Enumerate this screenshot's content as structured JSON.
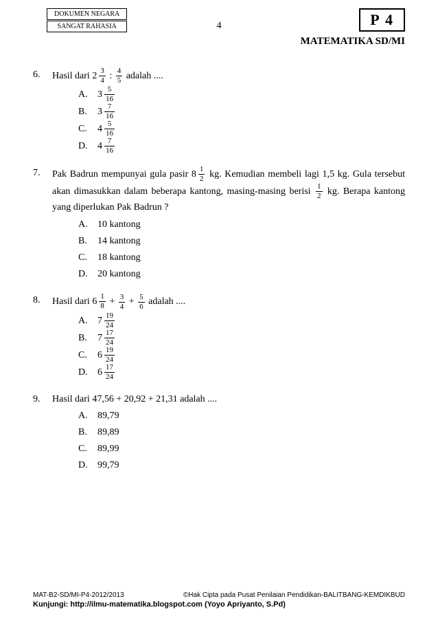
{
  "header": {
    "box1": "DOKUMEN NEGARA",
    "box2": "SANGAT RAHASIA",
    "page_number": "4",
    "code_box": "P 4",
    "subject": "MATEMATIKA SD/MI"
  },
  "questions": [
    {
      "num": "6.",
      "parts": [
        "Hasil dari  ",
        {
          "whole": "2",
          "n": "3",
          "d": "4"
        },
        " : ",
        {
          "n": "4",
          "d": "5"
        },
        "  adalah ...."
      ],
      "options": [
        {
          "label": "A.",
          "parts": [
            {
              "whole": "3",
              "n": "5",
              "d": "16"
            }
          ]
        },
        {
          "label": "B.",
          "parts": [
            {
              "whole": "3",
              "n": "7",
              "d": "16"
            }
          ]
        },
        {
          "label": "C.",
          "parts": [
            {
              "whole": "4",
              "n": "5",
              "d": "16"
            }
          ]
        },
        {
          "label": "D.",
          "parts": [
            {
              "whole": "4",
              "n": "7",
              "d": "16"
            }
          ]
        }
      ]
    },
    {
      "num": "7.",
      "parts": [
        "Pak Badrun mempunyai gula pasir ",
        {
          "whole": "8",
          "n": "1",
          "d": "2"
        },
        " kg. Kemudian membeli lagi 1,5 kg. Gula tersebut akan dimasukkan dalam beberapa kantong, masing-masing berisi ",
        {
          "n": "1",
          "d": "2"
        },
        " kg. Berapa kantong yang diperlukan Pak Badrun ?"
      ],
      "options": [
        {
          "label": "A.",
          "parts": [
            "10 kantong"
          ]
        },
        {
          "label": "B.",
          "parts": [
            "14 kantong"
          ]
        },
        {
          "label": "C.",
          "parts": [
            "18 kantong"
          ]
        },
        {
          "label": "D.",
          "parts": [
            "20 kantong"
          ]
        }
      ]
    },
    {
      "num": "8.",
      "parts": [
        "Hasil dari  ",
        {
          "whole": "6",
          "n": "1",
          "d": "8"
        },
        " + ",
        {
          "n": "3",
          "d": "4"
        },
        " + ",
        {
          "n": "5",
          "d": "6"
        },
        "  adalah ...."
      ],
      "options": [
        {
          "label": "A.",
          "parts": [
            {
              "whole": "7",
              "n": "19",
              "d": "24"
            }
          ]
        },
        {
          "label": "B.",
          "parts": [
            {
              "whole": "7",
              "n": "17",
              "d": "24"
            }
          ]
        },
        {
          "label": "C.",
          "parts": [
            {
              "whole": "6",
              "n": "19",
              "d": "24"
            }
          ]
        },
        {
          "label": "D.",
          "parts": [
            {
              "whole": "6",
              "n": "17",
              "d": "24"
            }
          ]
        }
      ]
    },
    {
      "num": "9.",
      "parts": [
        "Hasil dari 47,56 + 20,92 + 21,31 adalah ...."
      ],
      "options": [
        {
          "label": "A.",
          "parts": [
            "89,79"
          ]
        },
        {
          "label": "B.",
          "parts": [
            "89,89"
          ]
        },
        {
          "label": "C.",
          "parts": [
            "89,99"
          ]
        },
        {
          "label": "D.",
          "parts": [
            "99,79"
          ]
        }
      ]
    }
  ],
  "footer": {
    "left": "MAT-B2-SD/MI-P4-2012/2013",
    "right": "©Hak Cipta pada Pusat Penilaian Pendidikan-BALITBANG-KEMDIKBUD",
    "line2": "Kunjungi: http://ilmu-matematika.blogspot.com (Yoyo Apriyanto, S.Pd)"
  }
}
